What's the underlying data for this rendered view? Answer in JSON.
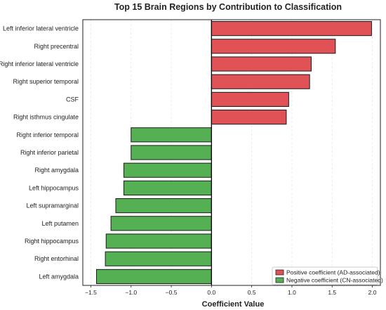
{
  "chart_data": {
    "type": "bar",
    "orientation": "horizontal",
    "title": "Top 15 Brain Regions by Contribution to Classification",
    "xlabel": "Coefficient Value",
    "ylabel": "",
    "xlim": [
      -1.6,
      2.1
    ],
    "xticks": [
      -1.5,
      -1.0,
      -0.5,
      0.0,
      0.5,
      1.0,
      1.5,
      2.0
    ],
    "xtick_labels": [
      "−1.5",
      "−1.0",
      "−0.5",
      "0.0",
      "0.5",
      "1.0",
      "1.5",
      "2.0"
    ],
    "grid": true,
    "legend_position": "bottom-right",
    "categories": [
      "Left inferior lateral ventricle",
      "Right precentral",
      "Right inferior lateral ventricle",
      "Right superior temporal",
      "CSF",
      "Right isthmus cingulate",
      "Right inferior temporal",
      "Right inferior parietal",
      "Right amygdala",
      "Left hippocampus",
      "Left supramarginal",
      "Left putamen",
      "Right hippocampus",
      "Right entorhinal",
      "Left amygdala"
    ],
    "values": [
      1.99,
      1.54,
      1.24,
      1.22,
      0.96,
      0.93,
      -1.0,
      -1.0,
      -1.09,
      -1.09,
      -1.19,
      -1.25,
      -1.31,
      -1.32,
      -1.43
    ],
    "series": [
      {
        "name": "Positive coefficient (AD-associated)",
        "color": "#e05256"
      },
      {
        "name": "Negative coefficient (CN-associated)",
        "color": "#55b054"
      }
    ]
  }
}
